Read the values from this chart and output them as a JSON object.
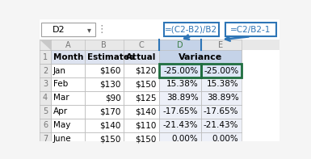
{
  "name_box": "D2",
  "formula1": "=(C2-B2)/B2",
  "formula2": "=C2/B2-1",
  "row_numbers": [
    "1",
    "2",
    "3",
    "4",
    "5",
    "6",
    "7"
  ],
  "header_row": [
    "Month",
    "Estimated",
    "Actual",
    "",
    ""
  ],
  "rows": [
    [
      "Jan",
      "$160",
      "$120",
      "-25.00%",
      "-25.00%"
    ],
    [
      "Feb",
      "$130",
      "$150",
      "15.38%",
      "15.38%"
    ],
    [
      "Mar",
      "$90",
      "$125",
      "38.89%",
      "38.89%"
    ],
    [
      "Apr",
      "$170",
      "$140",
      "-17.65%",
      "-17.65%"
    ],
    [
      "May",
      "$140",
      "$110",
      "-21.43%",
      "-21.43%"
    ],
    [
      "June",
      "$150",
      "$150",
      "0.00%",
      "0.00%"
    ]
  ],
  "grid_color": "#bfbfbf",
  "header_bg": "#e8e8e8",
  "col_header_color": "#767676",
  "variance_header_bg": "#c5d3e8",
  "variance_col_bg": "#edf0f8",
  "row1_abc_bg": "#dde3f0",
  "selected_cell_bg": "#dce6f5",
  "selected_cell_border": "#1f6e3f",
  "formula_box_bg": "#ffffff",
  "formula_box_border": "#2e75b6",
  "formula_text_color": "#2e75b6",
  "arrow_color": "#2e75b6",
  "name_box_bg": "#ffffff",
  "name_box_border": "#a0a0a0",
  "text_color": "#000000",
  "white_bg": "#ffffff"
}
